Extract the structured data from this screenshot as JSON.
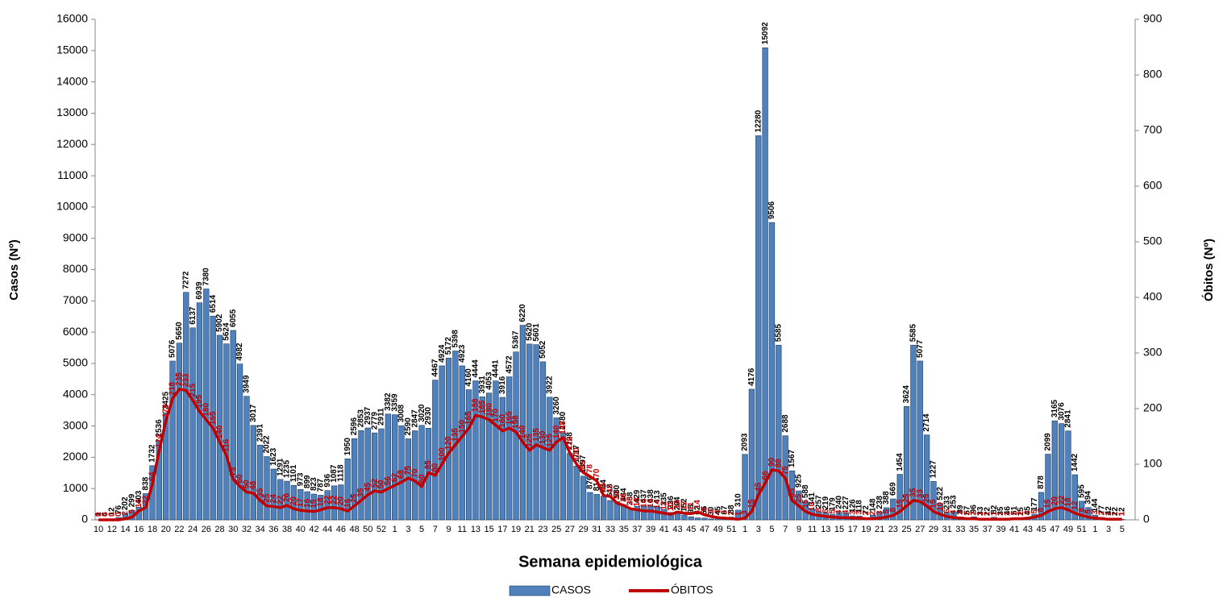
{
  "chart_data": {
    "type": "bar",
    "x_label": "Semana epidemiológica",
    "y_label": "Casos (Nº)",
    "y2_label": "Óbitos (Nº)",
    "categories": [
      "10",
      null,
      "12",
      null,
      "14",
      null,
      "16",
      null,
      "18",
      null,
      "20",
      null,
      "22",
      null,
      "24",
      null,
      "26",
      null,
      "28",
      null,
      "30",
      null,
      "32",
      null,
      "34",
      null,
      "36",
      null,
      "38",
      null,
      "40",
      null,
      "42",
      null,
      "44",
      null,
      "46",
      null,
      "48",
      null,
      "50",
      null,
      "52",
      null,
      "1",
      null,
      "3",
      null,
      "5",
      null,
      "7",
      null,
      "9",
      null,
      "11",
      null,
      "13",
      null,
      "15",
      null,
      "17",
      null,
      "19",
      null,
      "21",
      null,
      "23",
      null,
      "25",
      null,
      "27",
      null,
      "29",
      null,
      "31",
      null,
      "33",
      null,
      "35",
      null,
      "37",
      null,
      "39",
      null,
      "41",
      null,
      "43",
      null,
      "45",
      null,
      "47",
      null,
      "49",
      null,
      "51",
      null,
      "1",
      null,
      "3",
      null,
      "5",
      null,
      "7",
      null,
      "9",
      null,
      "11",
      null,
      "13",
      null,
      "15",
      null,
      "17",
      null,
      "19",
      null,
      "21",
      null,
      "23",
      null,
      "25",
      null,
      "27",
      null,
      "29",
      null,
      "31",
      null,
      "33",
      null,
      "35",
      null,
      "37",
      null,
      "39",
      null,
      "41",
      null,
      "43",
      null,
      "45",
      null,
      "47",
      null,
      "49",
      null,
      "51",
      null,
      "1",
      null,
      "3",
      null,
      "5"
    ],
    "series": [
      {
        "name": "CASOS",
        "type": "bar",
        "color": "#4f81bd",
        "values": [
          1,
          4,
          12,
          76,
          202,
          299,
          403,
          838,
          1732,
          2536,
          3425,
          5076,
          5650,
          7272,
          6137,
          6939,
          7380,
          6514,
          5902,
          5624,
          6055,
          4982,
          3949,
          3017,
          2391,
          2022,
          1623,
          1291,
          1235,
          1101,
          973,
          899,
          823,
          787,
          936,
          1087,
          1118,
          1950,
          2596,
          2853,
          2937,
          2779,
          2911,
          3382,
          3359,
          3008,
          2590,
          2847,
          3020,
          2930,
          4467,
          4924,
          5172,
          5398,
          4923,
          4160,
          4444,
          3931,
          4053,
          4441,
          3916,
          4572,
          5367,
          6220,
          5620,
          5601,
          5052,
          3922,
          3260,
          2780,
          2128,
          1717,
          1397,
          876,
          814,
          754,
          618,
          580,
          484,
          358,
          429,
          437,
          438,
          413,
          335,
          236,
          204,
          152,
          98,
          62,
          56,
          30,
          45,
          67,
          88,
          310,
          2093,
          4176,
          12280,
          15092,
          9506,
          5585,
          2688,
          1567,
          925,
          588,
          341,
          257,
          219,
          179,
          240,
          227,
          126,
          118,
          72,
          148,
          238,
          388,
          669,
          1454,
          3624,
          5585,
          5077,
          2714,
          1227,
          522,
          233,
          253,
          89,
          57,
          96,
          33,
          22,
          82,
          35,
          46,
          51,
          15,
          45,
          177,
          878,
          2099,
          3165,
          3076,
          2841,
          1442,
          595,
          394,
          144,
          77,
          42,
          22,
          12
        ]
      },
      {
        "name": "ÓBITOS",
        "type": "line",
        "axis": "y2",
        "color": "#c00000",
        "values": [
          0,
          0,
          0,
          0,
          2,
          5,
          16,
          22,
          64,
          124,
          178,
          218,
          235,
          233,
          215,
          195,
          180,
          165,
          140,
          116,
          73,
          60,
          50,
          48,
          35,
          25,
          24,
          22,
          26,
          20,
          17,
          16,
          15,
          18,
          22,
          22,
          20,
          16,
          25,
          35,
          45,
          52,
          50,
          56,
          62,
          68,
          75,
          70,
          60,
          85,
          80,
          100,
          120,
          135,
          150,
          165,
          188,
          185,
          180,
          170,
          160,
          165,
          158,
          140,
          125,
          135,
          130,
          125,
          140,
          148,
          120,
          100,
          85,
          78,
          70,
          44,
          42,
          30,
          26,
          20,
          18,
          16,
          16,
          14,
          12,
          10,
          14,
          12,
          11,
          14,
          9,
          6,
          4,
          3,
          2,
          1,
          3,
          15,
          45,
          66,
          90,
          88,
          75,
          35,
          25,
          15,
          10,
          8,
          6,
          5,
          4,
          4,
          3,
          3,
          2,
          2,
          3,
          5,
          8,
          15,
          25,
          35,
          33,
          25,
          15,
          10,
          6,
          4,
          3,
          2,
          2,
          1,
          1,
          1,
          1,
          1,
          2,
          2,
          3,
          5,
          8,
          15,
          20,
          22,
          18,
          12,
          8,
          5,
          3,
          2,
          1,
          1,
          1
        ]
      }
    ],
    "ylim": [
      0,
      16000
    ],
    "yticks": [
      0,
      1000,
      2000,
      3000,
      4000,
      5000,
      6000,
      7000,
      8000,
      9000,
      10000,
      11000,
      12000,
      13000,
      14000,
      15000,
      16000
    ],
    "y2lim": [
      0,
      900
    ],
    "y2ticks": [
      0,
      100,
      200,
      300,
      400,
      500,
      600,
      700,
      800,
      900
    ],
    "legend": "bottom"
  }
}
